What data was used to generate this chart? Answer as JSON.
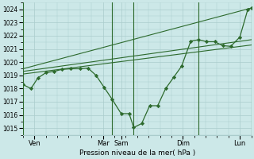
{
  "background_color": "#cce8e8",
  "grid_color": "#aacccc",
  "line_color": "#2d6a2d",
  "ylabel_text": "Pression niveau de la mer( hPa )",
  "ylim": [
    1014.5,
    1024.5
  ],
  "yticks": [
    1015,
    1016,
    1017,
    1018,
    1019,
    1020,
    1021,
    1022,
    1023,
    1024
  ],
  "xlim": [
    0,
    10.0
  ],
  "xtick_positions": [
    0.5,
    3.5,
    4.3,
    7.0,
    9.5
  ],
  "xtick_labels": [
    "Ven",
    "Mar",
    "Sam",
    "Dim",
    "Lun"
  ],
  "vlines": [
    0,
    3.9,
    4.85,
    7.7,
    10.0
  ],
  "trend1_x": [
    0.0,
    10.0
  ],
  "trend1_y": [
    1019.1,
    1021.3
  ],
  "trend2_x": [
    0.0,
    10.0
  ],
  "trend2_y": [
    1019.3,
    1021.7
  ],
  "trend3_x": [
    0.0,
    10.0
  ],
  "trend3_y": [
    1019.5,
    1024.1
  ],
  "main_x": [
    0.0,
    0.35,
    0.65,
    1.0,
    1.35,
    1.7,
    2.1,
    2.5,
    2.85,
    3.2,
    3.55,
    3.9,
    4.3,
    4.65,
    4.85,
    5.2,
    5.55,
    5.9,
    6.25,
    6.6,
    6.95,
    7.35,
    7.7,
    8.05,
    8.4,
    8.75,
    9.1,
    9.5,
    9.85,
    10.0
  ],
  "main_y": [
    1018.3,
    1018.0,
    1018.8,
    1019.2,
    1019.3,
    1019.45,
    1019.5,
    1019.5,
    1019.55,
    1019.0,
    1018.1,
    1017.2,
    1016.1,
    1016.1,
    1015.05,
    1015.35,
    1016.7,
    1016.7,
    1018.0,
    1018.85,
    1019.7,
    1021.6,
    1021.7,
    1021.55,
    1021.55,
    1021.25,
    1021.2,
    1021.9,
    1024.0,
    1024.1
  ],
  "figsize": [
    3.2,
    2.0
  ],
  "dpi": 100
}
